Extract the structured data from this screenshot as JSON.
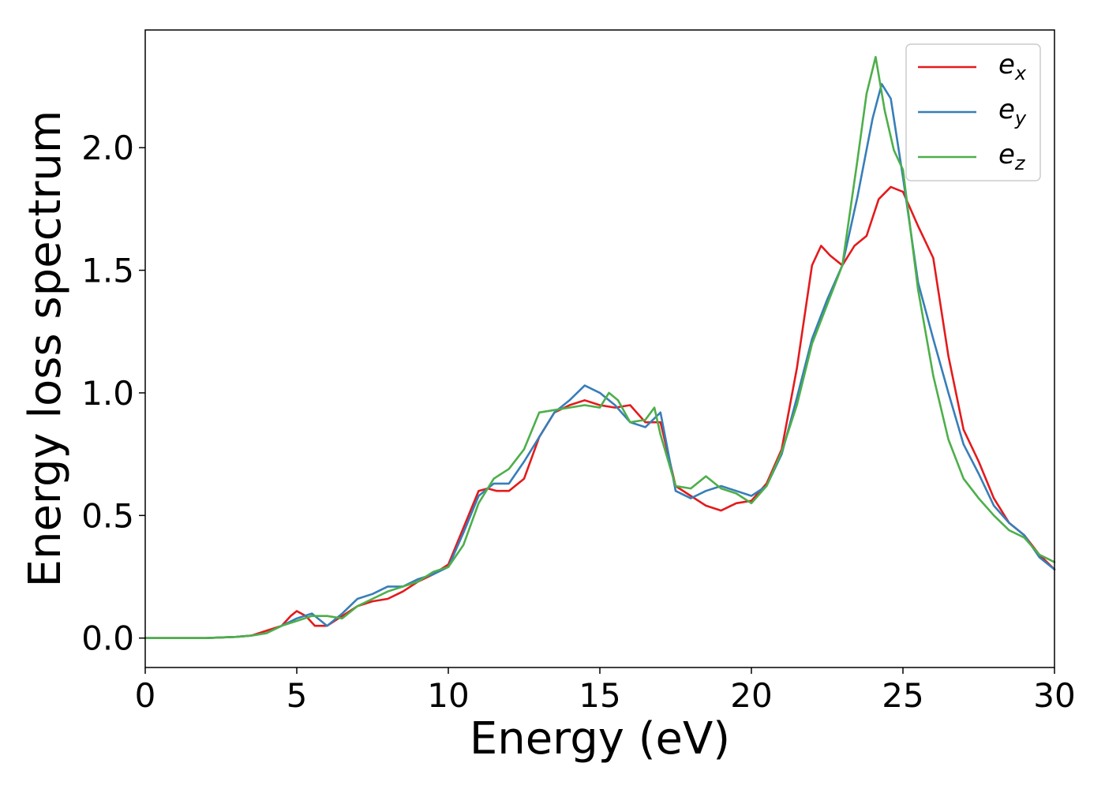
{
  "chart_data": {
    "type": "line",
    "xlabel": "Energy (eV)",
    "ylabel": "Energy loss spectrum",
    "xlim": [
      0,
      30
    ],
    "ylim": [
      -0.12,
      2.48
    ],
    "xticks": [
      0,
      5,
      10,
      15,
      20,
      25,
      30
    ],
    "xtick_labels": [
      "0",
      "5",
      "10",
      "15",
      "20",
      "25",
      "30"
    ],
    "yticks": [
      0.0,
      0.5,
      1.0,
      1.5,
      2.0
    ],
    "ytick_labels": [
      "0.0",
      "0.5",
      "1.0",
      "1.5",
      "2.0"
    ],
    "grid": false,
    "legend_position": "top-right",
    "series": [
      {
        "name": "e",
        "subscript": "x",
        "color": "#e41a1c",
        "x": [
          0,
          1,
          2,
          3,
          3.5,
          4,
          4.5,
          4.8,
          5,
          5.3,
          5.6,
          6,
          6.5,
          7,
          7.5,
          8,
          8.5,
          9,
          9.5,
          10,
          10.5,
          11,
          11.3,
          11.6,
          12,
          12.5,
          13,
          13.5,
          14,
          14.5,
          15,
          15.5,
          16,
          16.5,
          17,
          17.5,
          18,
          18.5,
          19,
          19.5,
          20,
          20.5,
          21,
          21.5,
          22,
          22.3,
          22.6,
          23,
          23.4,
          23.8,
          24.2,
          24.6,
          25,
          25.5,
          26,
          26.5,
          27,
          27.5,
          28,
          28.5,
          29,
          29.5,
          30
        ],
        "y": [
          0,
          0,
          0,
          0.005,
          0.01,
          0.03,
          0.05,
          0.09,
          0.11,
          0.09,
          0.05,
          0.05,
          0.09,
          0.13,
          0.15,
          0.16,
          0.19,
          0.23,
          0.26,
          0.3,
          0.45,
          0.6,
          0.61,
          0.6,
          0.6,
          0.65,
          0.82,
          0.92,
          0.95,
          0.97,
          0.95,
          0.94,
          0.95,
          0.88,
          0.88,
          0.62,
          0.58,
          0.54,
          0.52,
          0.55,
          0.56,
          0.63,
          0.77,
          1.1,
          1.52,
          1.6,
          1.56,
          1.52,
          1.6,
          1.64,
          1.79,
          1.84,
          1.82,
          1.68,
          1.55,
          1.15,
          0.85,
          0.72,
          0.57,
          0.47,
          0.42,
          0.34,
          0.28
        ]
      },
      {
        "name": "e",
        "subscript": "y",
        "color": "#377eb8",
        "x": [
          0,
          1,
          2,
          3,
          3.5,
          4,
          4.5,
          5,
          5.5,
          6,
          6.5,
          7,
          7.5,
          8,
          8.5,
          9,
          9.5,
          10,
          10.5,
          11,
          11.5,
          12,
          12.5,
          13,
          13.5,
          14,
          14.5,
          15,
          15.5,
          16,
          16.5,
          17,
          17.5,
          18,
          18.5,
          19,
          19.5,
          20,
          20.5,
          21,
          21.5,
          22,
          22.5,
          23,
          23.5,
          24,
          24.3,
          24.6,
          25,
          25.5,
          26,
          26.5,
          27,
          27.5,
          28,
          28.5,
          29,
          29.5,
          30
        ],
        "y": [
          0,
          0,
          0,
          0.005,
          0.01,
          0.02,
          0.05,
          0.08,
          0.1,
          0.05,
          0.1,
          0.16,
          0.18,
          0.21,
          0.21,
          0.24,
          0.26,
          0.29,
          0.43,
          0.58,
          0.63,
          0.63,
          0.72,
          0.82,
          0.92,
          0.97,
          1.03,
          1.0,
          0.95,
          0.88,
          0.86,
          0.92,
          0.6,
          0.57,
          0.6,
          0.62,
          0.6,
          0.58,
          0.62,
          0.75,
          0.98,
          1.22,
          1.38,
          1.52,
          1.8,
          2.12,
          2.26,
          2.2,
          1.88,
          1.45,
          1.22,
          1.0,
          0.79,
          0.67,
          0.54,
          0.47,
          0.42,
          0.33,
          0.28
        ]
      },
      {
        "name": "e",
        "subscript": "z",
        "color": "#4daf4a",
        "x": [
          0,
          1,
          2,
          3,
          3.5,
          4,
          4.5,
          5,
          5.5,
          6,
          6.5,
          7,
          7.5,
          8,
          8.5,
          9,
          9.5,
          10,
          10.5,
          11,
          11.5,
          12,
          12.5,
          13,
          13.5,
          14,
          14.5,
          15,
          15.3,
          15.6,
          16,
          16.5,
          16.8,
          17,
          17.5,
          18,
          18.5,
          19,
          19.5,
          20,
          20.5,
          21,
          21.5,
          22,
          22.5,
          23,
          23.5,
          23.8,
          24.1,
          24.4,
          24.7,
          25,
          25.5,
          26,
          26.5,
          27,
          27.5,
          28,
          28.5,
          29,
          29.5,
          30
        ],
        "y": [
          0,
          0,
          0,
          0.005,
          0.01,
          0.02,
          0.05,
          0.07,
          0.09,
          0.09,
          0.08,
          0.13,
          0.16,
          0.19,
          0.21,
          0.23,
          0.27,
          0.29,
          0.38,
          0.55,
          0.65,
          0.69,
          0.77,
          0.92,
          0.93,
          0.94,
          0.95,
          0.94,
          1.0,
          0.97,
          0.88,
          0.89,
          0.94,
          0.83,
          0.62,
          0.61,
          0.66,
          0.61,
          0.59,
          0.55,
          0.62,
          0.76,
          0.95,
          1.2,
          1.36,
          1.52,
          1.95,
          2.22,
          2.37,
          2.15,
          1.99,
          1.91,
          1.42,
          1.07,
          0.81,
          0.65,
          0.57,
          0.5,
          0.44,
          0.41,
          0.34,
          0.31
        ]
      }
    ]
  }
}
